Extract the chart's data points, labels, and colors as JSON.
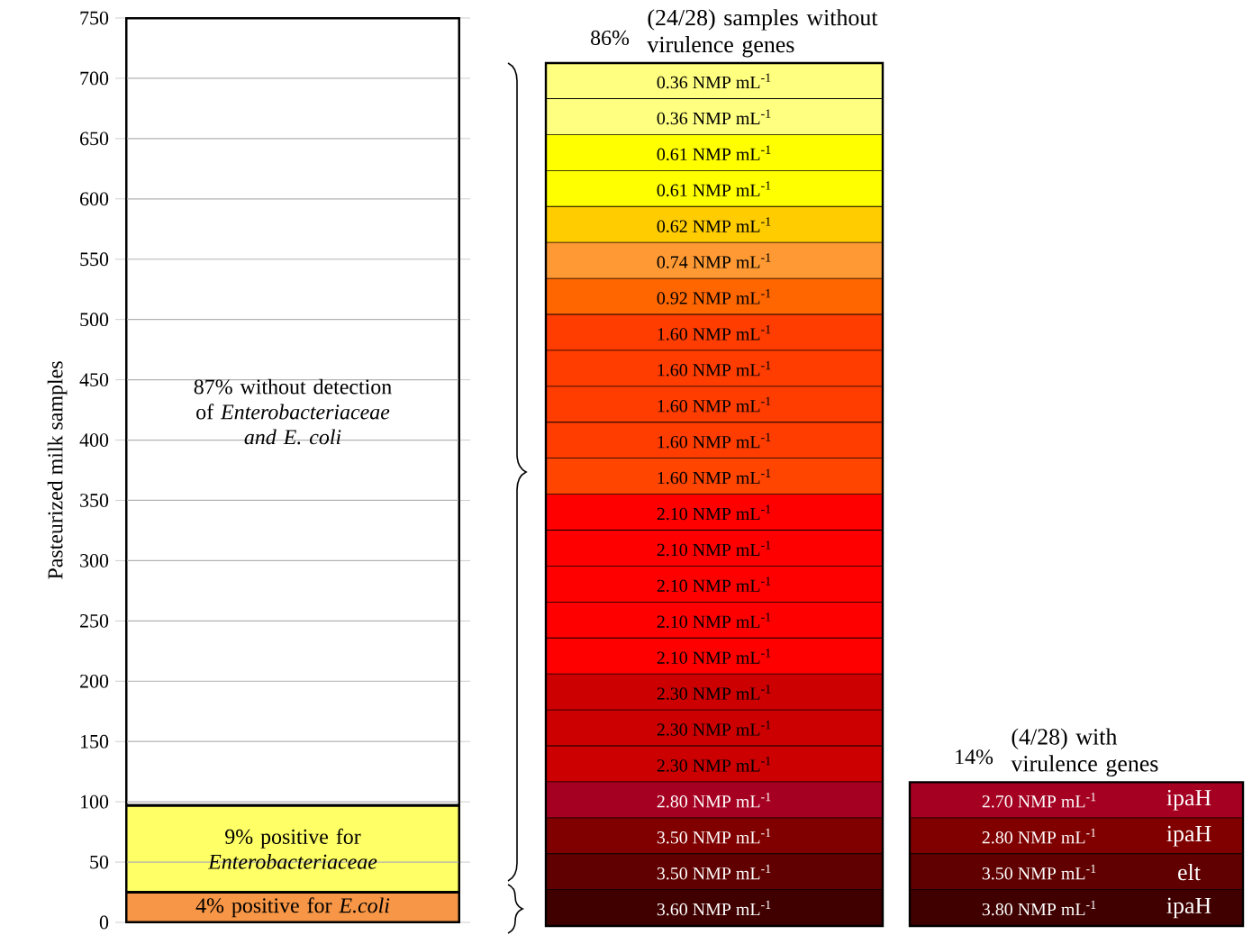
{
  "chart_data": [
    {
      "type": "bar",
      "stacked": true,
      "categories": [
        null
      ],
      "ylabel": "Pasteurized milk samples",
      "ylim": [
        0,
        750
      ],
      "yticks": [
        0,
        50,
        100,
        150,
        200,
        250,
        300,
        350,
        400,
        450,
        500,
        550,
        600,
        650,
        700,
        750
      ],
      "grid": "y",
      "series": [
        {
          "color": "#f79646",
          "values": [
            25
          ]
        },
        {
          "color": "#ffff66",
          "values": [
            72
          ]
        },
        {
          "color": "#ffffff",
          "values": [
            653
          ]
        }
      ],
      "annotations": [
        "4% positive for *E.coli*",
        "9% positive for *Enterobacteriaceae*",
        "87% without detection of *Enterobacteriaceae and E. coli*"
      ]
    },
    {
      "type": "other",
      "title": "86%",
      "subtitle": "(24/28) samples without virulence genes",
      "categories": [
        "0.36 NMP mL$^{-1}$",
        "0.36 NMP mL$^{-1}$",
        "0.61 NMP mL$^{-1}$",
        "0.61 NMP mL$^{-1}$",
        "0.62 NMP mL$^{-1}$",
        "0.74 NMP mL$^{-1}$",
        "0.92 NMP mL$^{-1}$",
        "1.60 NMP mL$^{-1}$",
        "1.60 NMP mL$^{-1}$",
        "1.60 NMP mL$^{-1}$",
        "1.60 NMP mL$^{-1}$",
        "1.60 NMP mL$^{-1}$",
        "2.10 NMP mL$^{-1}$",
        "2.10 NMP mL$^{-1}$",
        "2.10 NMP mL$^{-1}$",
        "2.10 NMP mL$^{-1}$",
        "2.10 NMP mL$^{-1}$",
        "2.30 NMP mL$^{-1}$",
        "2.30 NMP mL$^{-1}$",
        "2.30 NMP mL$^{-1}$",
        "2.80 NMP mL$^{-1}$",
        "3.50 NMP mL$^{-1}$",
        "3.50 NMP mL$^{-1}$",
        "3.60 NMP mL$^{-1}$"
      ],
      "colors": [
        "#ffff80",
        "#ffff80",
        "#ffff00",
        "#ffff00",
        "#ffcc00",
        "#ff9933",
        "#ff6600",
        "#ff3d00",
        "#ff3d00",
        "#ff3d00",
        "#ff3d00",
        "#ff4500",
        "#ff0000",
        "#ff0000",
        "#ff0000",
        "#ff0000",
        "#ff0000",
        "#cc0000",
        "#cc0000",
        "#cc0000",
        "#a50021",
        "#800000",
        "#600000",
        "#400000"
      ]
    },
    {
      "type": "other",
      "title": "14%",
      "subtitle": "(4/28) with virulence genes",
      "categories": [
        "2.70 NMP mL$^{-1}$",
        "2.80 NMP mL$^{-1}$",
        "3.50 NMP mL$^{-1}$",
        "3.80 NMP mL$^{-1}$"
      ],
      "colors": [
        "#a50021",
        "#800000",
        "#600000",
        "#400000"
      ],
      "annotations": [
        "ipaH",
        "ipaH",
        "elt",
        "ipaH"
      ]
    }
  ]
}
